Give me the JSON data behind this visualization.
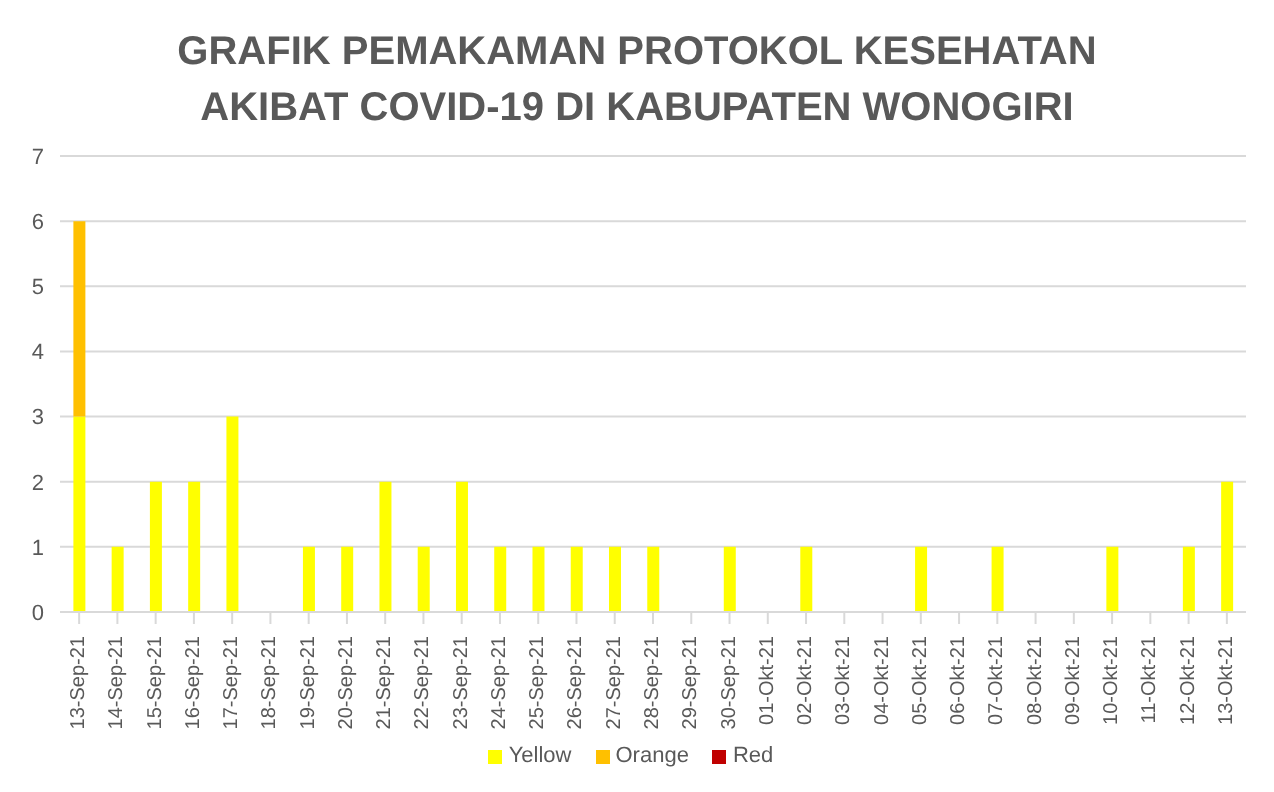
{
  "chart_data": {
    "type": "bar",
    "title": "GRAFIK PEMAKAMAN PROTOKOL KESEHATAN\nAKIBAT COVID-19 DI KABUPATEN WONOGIRI",
    "stacked": true,
    "categories": [
      "13-Sep-21",
      "14-Sep-21",
      "15-Sep-21",
      "16-Sep-21",
      "17-Sep-21",
      "18-Sep-21",
      "19-Sep-21",
      "20-Sep-21",
      "21-Sep-21",
      "22-Sep-21",
      "23-Sep-21",
      "24-Sep-21",
      "25-Sep-21",
      "26-Sep-21",
      "27-Sep-21",
      "28-Sep-21",
      "29-Sep-21",
      "30-Sep-21",
      "01-Okt-21",
      "02-Okt-21",
      "03-Okt-21",
      "04-Okt-21",
      "05-Okt-21",
      "06-Okt-21",
      "07-Okt-21",
      "08-Okt-21",
      "09-Okt-21",
      "10-Okt-21",
      "11-Okt-21",
      "12-Okt-21",
      "13-Okt-21"
    ],
    "series": [
      {
        "name": "Yellow",
        "color": "#ffff00",
        "values": [
          3,
          1,
          2,
          2,
          3,
          0,
          1,
          1,
          2,
          1,
          2,
          1,
          1,
          1,
          1,
          1,
          0,
          1,
          0,
          1,
          0,
          0,
          1,
          0,
          1,
          0,
          0,
          1,
          0,
          1,
          2
        ]
      },
      {
        "name": "Orange",
        "color": "#ffc000",
        "values": [
          3,
          0,
          0,
          0,
          0,
          0,
          0,
          0,
          0,
          0,
          0,
          0,
          0,
          0,
          0,
          0,
          0,
          0,
          0,
          0,
          0,
          0,
          0,
          0,
          0,
          0,
          0,
          0,
          0,
          0,
          0
        ]
      },
      {
        "name": "Red",
        "color": "#c00000",
        "values": [
          0,
          0,
          0,
          0,
          0,
          0,
          0,
          0,
          0,
          0,
          0,
          0,
          0,
          0,
          0,
          0,
          0,
          0,
          0,
          0,
          0,
          0,
          0,
          0,
          0,
          0,
          0,
          0,
          0,
          0,
          0
        ]
      }
    ],
    "ylim": [
      0,
      7
    ],
    "yticks": [
      0,
      1,
      2,
      3,
      4,
      5,
      6,
      7
    ],
    "grid": "y",
    "legend": "bottom"
  }
}
